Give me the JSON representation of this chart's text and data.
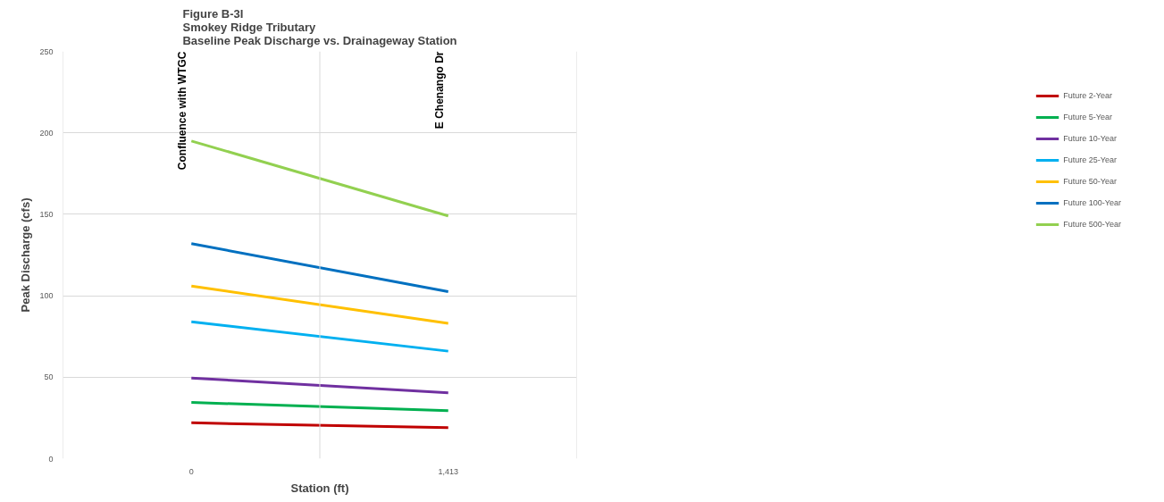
{
  "chart_data": {
    "type": "line",
    "title": "Figure B-3I\nSmokey Ridge Tributary\nBaseline Peak Discharge vs. Drainageway Station",
    "xlabel": "Station (ft)",
    "ylabel": "Peak Discharge (cfs)",
    "categories": [
      "0",
      "1,413"
    ],
    "ylim": [
      0,
      250
    ],
    "yticks": [
      0,
      50,
      100,
      150,
      200,
      250
    ],
    "grid": true,
    "legend": "right",
    "marker": "none",
    "line_style": "solid",
    "series": [
      {
        "name": "Future 2-Year",
        "color": "#c00000",
        "values": [
          22,
          19
        ]
      },
      {
        "name": "Future 5-Year",
        "color": "#00b050",
        "values": [
          34.5,
          29.5
        ]
      },
      {
        "name": "Future 10-Year",
        "color": "#7030a0",
        "values": [
          49.5,
          40.5
        ]
      },
      {
        "name": "Future 25-Year",
        "color": "#00b0f0",
        "values": [
          84,
          66
        ]
      },
      {
        "name": "Future 50-Year",
        "color": "#ffc000",
        "values": [
          106,
          83
        ]
      },
      {
        "name": "Future 100-Year",
        "color": "#0070c0",
        "values": [
          132,
          102.5
        ]
      },
      {
        "name": "Future 500-Year",
        "color": "#92d050",
        "values": [
          195,
          149
        ]
      }
    ],
    "annotations": [
      "Confluence with WTGC",
      "E Chenango Dr"
    ]
  }
}
